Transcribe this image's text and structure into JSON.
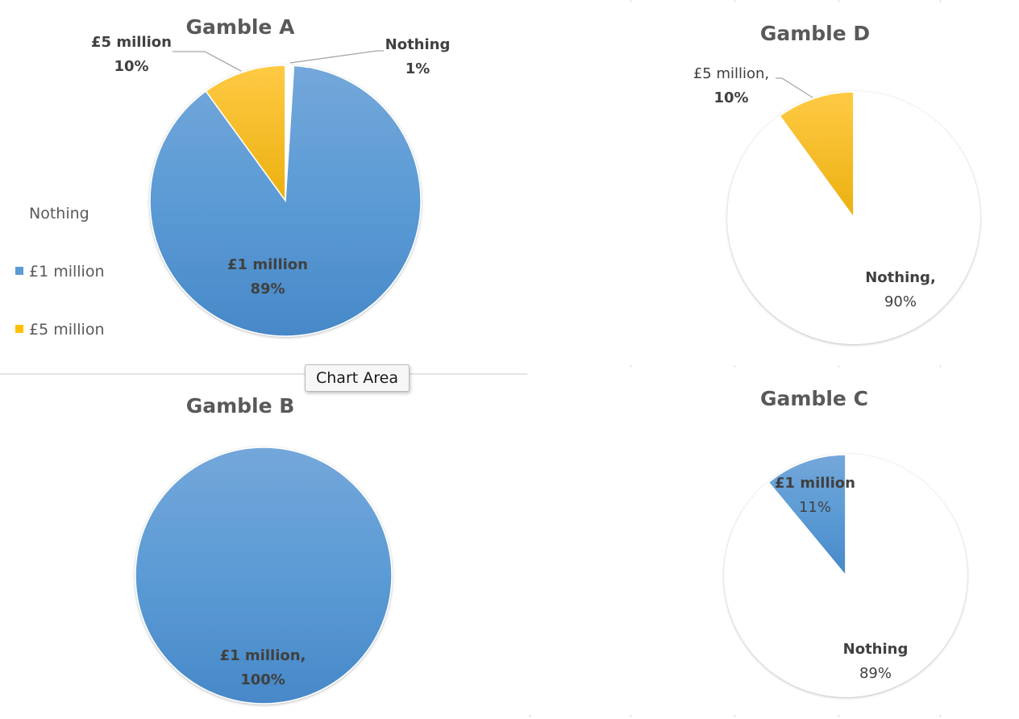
{
  "tooltip": "Chart Area",
  "colors": {
    "one_million": "#5b9bd5",
    "five_million": "#ffc000",
    "nothing": "#ffffff"
  },
  "chart_data": [
    {
      "type": "pie",
      "title": "Gamble A",
      "categories": [
        "£5 million",
        "Nothing",
        "£1 million"
      ],
      "values": [
        10,
        1,
        89
      ],
      "data_labels": [
        {
          "name": "£5 million",
          "value": "10%"
        },
        {
          "name": "Nothing",
          "value": "1%"
        },
        {
          "name": "£1 million",
          "value": "89%"
        }
      ],
      "legend": {
        "placement": "left",
        "entries": [
          "Nothing",
          "£1 million",
          "£5 million"
        ]
      }
    },
    {
      "type": "pie",
      "title": "Gamble D",
      "categories": [
        "£5 million",
        "Nothing"
      ],
      "values": [
        10,
        90
      ],
      "data_labels": [
        {
          "name": "£5 million,",
          "value": "10%"
        },
        {
          "name": "Nothing,",
          "value": "90%"
        }
      ]
    },
    {
      "type": "pie",
      "title": "Gamble B",
      "categories": [
        "£1 million"
      ],
      "values": [
        100
      ],
      "data_labels": [
        {
          "name": "£1 million,",
          "value": "100%"
        }
      ]
    },
    {
      "type": "pie",
      "title": "Gamble C",
      "categories": [
        "£1 million",
        "Nothing"
      ],
      "values": [
        11,
        89
      ],
      "data_labels": [
        {
          "name": "£1 million",
          "value": "11%"
        },
        {
          "name": "Nothing",
          "value": "89%"
        }
      ]
    }
  ]
}
